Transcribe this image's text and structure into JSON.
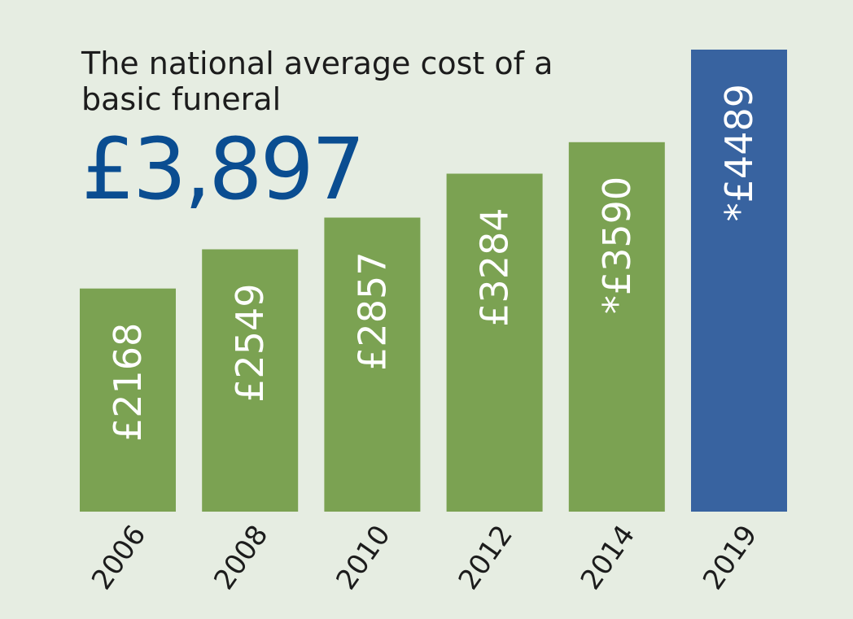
{
  "chart_data": {
    "type": "bar",
    "title": "The national average cost of a basic funeral",
    "headline_value": "£3,897",
    "categories": [
      "2006",
      "2008",
      "2010",
      "2012",
      "2014",
      "2019"
    ],
    "values": [
      2168,
      2549,
      2857,
      3284,
      3590,
      4489
    ],
    "data_labels": [
      "£2168",
      "£2549",
      "£2857",
      "£3284",
      "*£3590",
      "*£4489"
    ],
    "highlight_category": "2019",
    "colors": {
      "bar": "#7ba252",
      "highlight": "#3863a0",
      "headline_value": "#0a4d91",
      "background": "#e6ede2"
    },
    "xlabel": "",
    "ylabel": "",
    "ylim": [
      0,
      4489
    ],
    "grid": false,
    "legend": "none"
  }
}
